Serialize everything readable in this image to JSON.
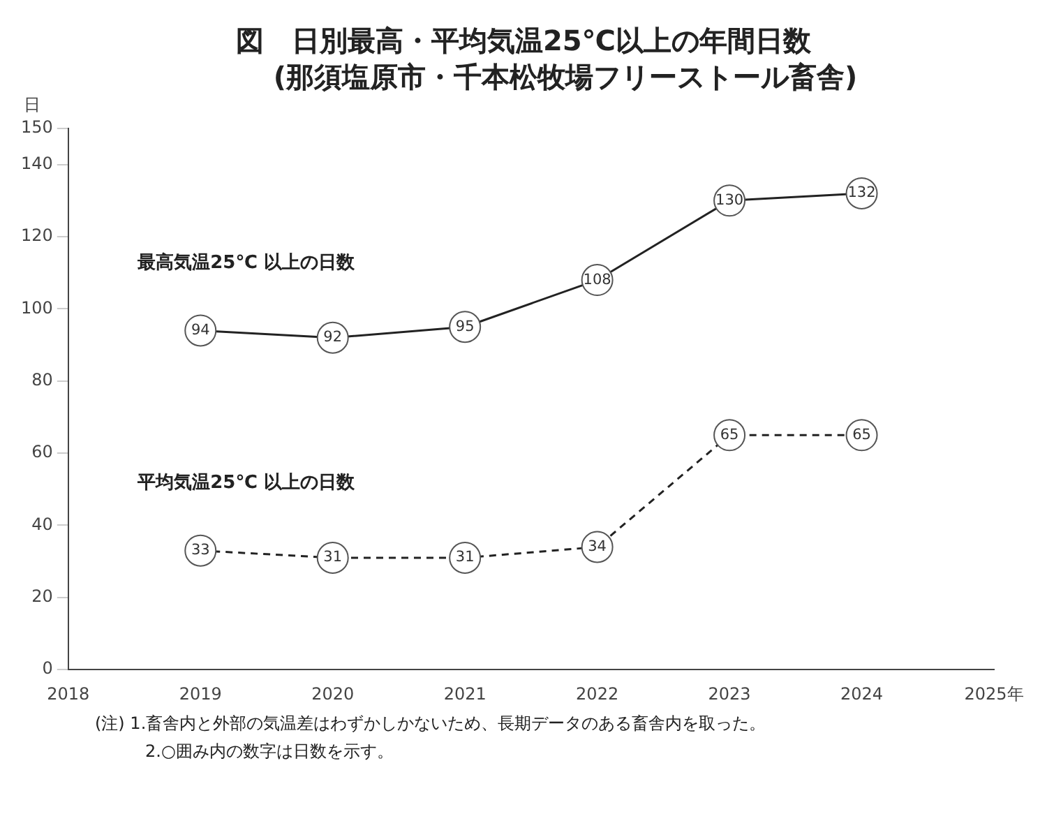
{
  "chart_data": {
    "type": "line",
    "title": "図　日別最高・平均気温25℃以上の年間日数",
    "subtitle": "(那須塩原市・千本松牧場フリーストール畜舎)",
    "ylabel": "日",
    "x": [
      2019,
      2020,
      2021,
      2022,
      2023,
      2024
    ],
    "series": [
      {
        "name": "最高気温25℃ 以上の日数",
        "color": "#222222",
        "values": [
          94,
          92,
          95,
          108,
          130,
          132
        ],
        "line_style": "solid"
      },
      {
        "name": "平均気温25℃ 以上の日数",
        "color": "#222222",
        "values": [
          33,
          31,
          31,
          34,
          65,
          65
        ],
        "line_style": "dashed"
      }
    ],
    "xlim": [
      2018,
      2025
    ],
    "xticks": [
      2018,
      2019,
      2020,
      2021,
      2022,
      2023,
      2024,
      {
        "value": 2025,
        "label": "2025年"
      }
    ],
    "ylim": [
      0,
      150
    ],
    "yticks": [
      0,
      20,
      40,
      60,
      80,
      100,
      120,
      140,
      150
    ],
    "grid": false,
    "legend": false,
    "marker": "circle",
    "data_labels": true,
    "annotations": [
      "(注) 1.畜舎内と外部の気温差はわずかしかないため、長期データのある畜舎内を取った。",
      "2.○囲み内の数字は日数を示す。"
    ]
  }
}
